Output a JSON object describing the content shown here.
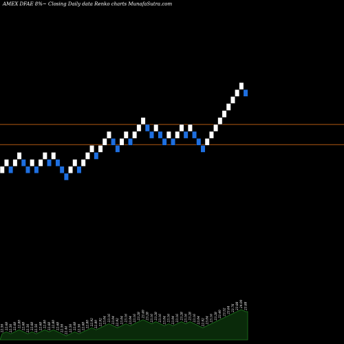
{
  "title": "AMEX  DFAE 8%~  Closing Daily data  Renko  charts MunafaSutra.com",
  "colors": {
    "background": "#000000",
    "up_brick": "#ffffff",
    "down_brick": "#1e6fe0",
    "brick_edge": "#000000",
    "reference_line": "#b35a12",
    "volume_fill": "#0a2a0a",
    "volume_outline": "#1f7a1f"
  },
  "chart_data": {
    "type": "renko",
    "ylim": [
      -8,
      13
    ],
    "bricks": [
      {
        "level": 0,
        "dir": "up"
      },
      {
        "level": 1,
        "dir": "up"
      },
      {
        "level": 0,
        "dir": "down"
      },
      {
        "level": 1,
        "dir": "up"
      },
      {
        "level": 2,
        "dir": "up"
      },
      {
        "level": 1,
        "dir": "down"
      },
      {
        "level": 0,
        "dir": "down"
      },
      {
        "level": 1,
        "dir": "up"
      },
      {
        "level": 0,
        "dir": "down"
      },
      {
        "level": 1,
        "dir": "up"
      },
      {
        "level": 2,
        "dir": "up"
      },
      {
        "level": 1,
        "dir": "down"
      },
      {
        "level": 2,
        "dir": "up"
      },
      {
        "level": 1,
        "dir": "down"
      },
      {
        "level": 0,
        "dir": "down"
      },
      {
        "level": -1,
        "dir": "down"
      },
      {
        "level": 0,
        "dir": "up"
      },
      {
        "level": 1,
        "dir": "up"
      },
      {
        "level": 0,
        "dir": "down"
      },
      {
        "level": 1,
        "dir": "up"
      },
      {
        "level": 2,
        "dir": "up"
      },
      {
        "level": 3,
        "dir": "up"
      },
      {
        "level": 2,
        "dir": "down"
      },
      {
        "level": 3,
        "dir": "up"
      },
      {
        "level": 4,
        "dir": "up"
      },
      {
        "level": 5,
        "dir": "up"
      },
      {
        "level": 4,
        "dir": "down"
      },
      {
        "level": 3,
        "dir": "down"
      },
      {
        "level": 4,
        "dir": "up"
      },
      {
        "level": 5,
        "dir": "up"
      },
      {
        "level": 4,
        "dir": "down"
      },
      {
        "level": 5,
        "dir": "up"
      },
      {
        "level": 6,
        "dir": "up"
      },
      {
        "level": 7,
        "dir": "up"
      },
      {
        "level": 6,
        "dir": "down"
      },
      {
        "level": 5,
        "dir": "down"
      },
      {
        "level": 6,
        "dir": "up"
      },
      {
        "level": 5,
        "dir": "down"
      },
      {
        "level": 4,
        "dir": "down"
      },
      {
        "level": 5,
        "dir": "up"
      },
      {
        "level": 4,
        "dir": "down"
      },
      {
        "level": 5,
        "dir": "up"
      },
      {
        "level": 6,
        "dir": "up"
      },
      {
        "level": 5,
        "dir": "down"
      },
      {
        "level": 6,
        "dir": "up"
      },
      {
        "level": 5,
        "dir": "down"
      },
      {
        "level": 4,
        "dir": "down"
      },
      {
        "level": 3,
        "dir": "down"
      },
      {
        "level": 4,
        "dir": "up"
      },
      {
        "level": 5,
        "dir": "up"
      },
      {
        "level": 6,
        "dir": "up"
      },
      {
        "level": 7,
        "dir": "up"
      },
      {
        "level": 8,
        "dir": "up"
      },
      {
        "level": 9,
        "dir": "up"
      },
      {
        "level": 10,
        "dir": "up"
      },
      {
        "level": 11,
        "dir": "up"
      },
      {
        "level": 12,
        "dir": "up"
      },
      {
        "level": 11,
        "dir": "down"
      }
    ],
    "reference_lines": [
      7.0,
      4.1
    ],
    "volume": [
      3,
      4,
      3,
      4,
      5,
      4,
      3,
      4,
      3,
      4,
      5,
      4,
      5,
      4,
      3,
      2,
      3,
      4,
      3,
      4,
      5,
      6,
      5,
      6,
      7,
      8,
      7,
      6,
      7,
      8,
      7,
      8,
      9,
      10,
      9,
      8,
      9,
      8,
      7,
      8,
      7,
      8,
      9,
      8,
      9,
      8,
      7,
      6,
      7,
      8,
      9,
      10,
      11,
      12,
      13,
      14,
      15,
      14
    ],
    "volume_labels": [
      "22.56",
      "22.68",
      "22.56",
      "22.68",
      "22.80",
      "22.68",
      "22.56",
      "22.68",
      "22.56",
      "22.68",
      "22.80",
      "22.68",
      "22.80",
      "22.68",
      "22.56",
      "22.44",
      "22.56",
      "22.68",
      "22.56",
      "22.68",
      "22.80",
      "22.92",
      "22.80",
      "22.92",
      "23.04",
      "23.16",
      "23.04",
      "22.92",
      "23.04",
      "23.16",
      "23.04",
      "23.16",
      "23.28",
      "23.40",
      "23.28",
      "23.16",
      "23.28",
      "23.16",
      "23.04",
      "23.16",
      "23.04",
      "23.16",
      "23.28",
      "23.16",
      "23.28",
      "23.16",
      "23.04",
      "22.92",
      "23.04",
      "23.16",
      "23.28",
      "23.40",
      "23.52",
      "23.64",
      "23.76",
      "23.88",
      "24.00",
      "23.88"
    ]
  }
}
